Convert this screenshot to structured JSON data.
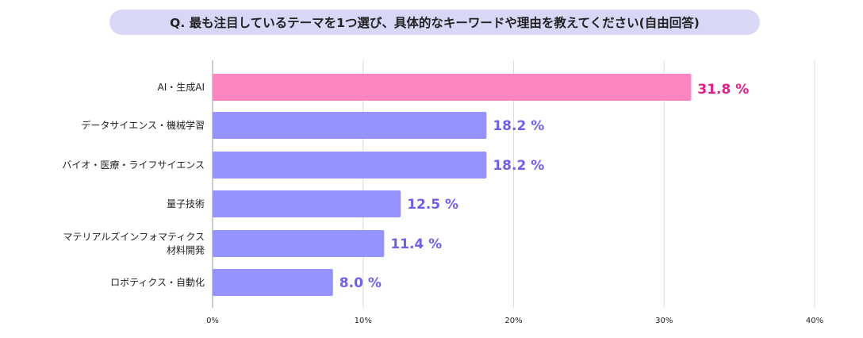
{
  "chart_data": {
    "type": "bar",
    "orientation": "horizontal",
    "title": "Q. 最も注目しているテーマを1つ選び、具体的なキーワードや理由を教えてください(自由回答)",
    "categories": [
      "AI・生成AI",
      "データサイエンス・機械学習",
      "バイオ・医療・ライフサイエンス",
      "量子技術",
      "マテリアルズインフォマティクス\n材料開発",
      "ロボティクス・自動化"
    ],
    "values": [
      31.8,
      18.2,
      18.2,
      12.5,
      11.4,
      8.0
    ],
    "value_labels": [
      "31.8 %",
      "18.2 %",
      "18.2 %",
      "12.5 %",
      "11.4 %",
      "8.0 %"
    ],
    "xlim": [
      0,
      40
    ],
    "x_ticks": [
      0,
      10,
      20,
      30,
      40
    ],
    "x_tick_labels": [
      "0%",
      "10%",
      "20%",
      "30%",
      "40%"
    ],
    "grid": true,
    "colors": {
      "highlight_bar": "#fd86c0",
      "highlight_label": "#ec1a8a",
      "bar": "#9594fe",
      "label": "#6f5ff0",
      "grid": "#dcdcdc",
      "title_bg": "#d8d8f6"
    },
    "highlight_index": 0
  }
}
